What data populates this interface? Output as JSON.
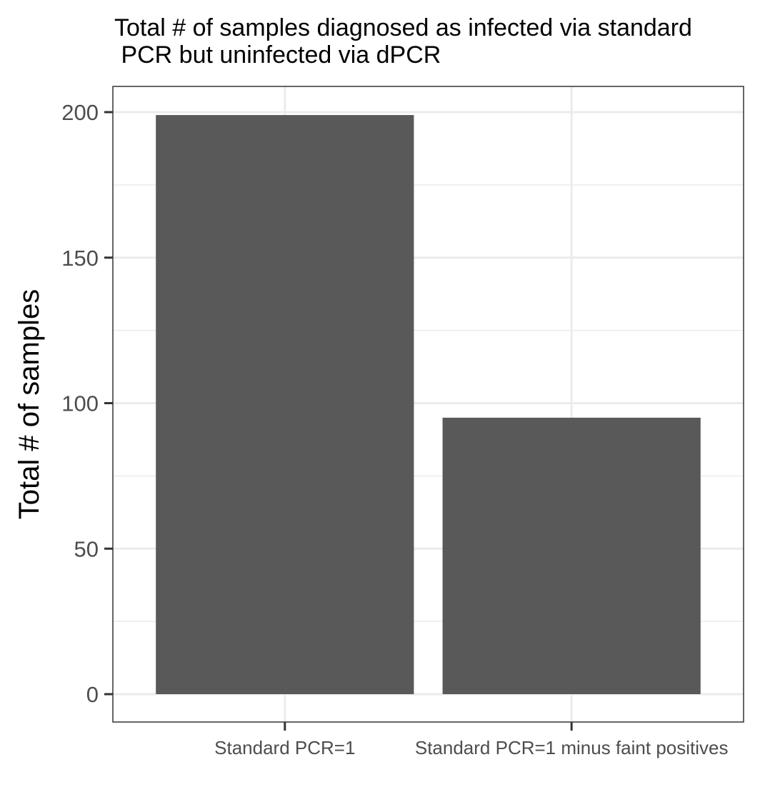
{
  "chart_data": {
    "type": "bar",
    "title_lines": [
      "Total # of samples diagnosed as infected via standard",
      " PCR but uninfected via dPCR"
    ],
    "xlabel": "",
    "ylabel": "Total # of samples",
    "categories": [
      "Standard PCR=1",
      "Standard PCR=1 minus faint positives"
    ],
    "values": [
      199,
      95
    ],
    "ylim": [
      -10,
      209
    ],
    "yticks": [
      0,
      50,
      100,
      150,
      200
    ],
    "ytick_labels": [
      "0",
      "50",
      "100",
      "150",
      "200"
    ],
    "grid": true,
    "theme": "bw",
    "bar_color": "#595959",
    "grid_color": "#ebebeb",
    "panel_border_color": "#333333"
  }
}
